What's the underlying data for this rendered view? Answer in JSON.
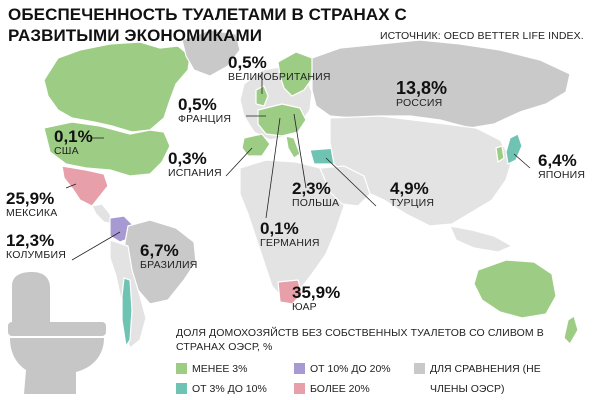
{
  "title": "ОБЕСПЕЧЕННОСТЬ ТУАЛЕТАМИ В СТРАНАХ С РАЗВИТЫМИ ЭКОНОМИКАМИ",
  "source": "ИСТОЧНИК: OECD BETTER LIFE INDEX.",
  "colors": {
    "less_3": "#9dcd85",
    "from3_to10": "#6fc3b3",
    "from10_to20": "#a79ad2",
    "more_20": "#e7a0aa",
    "non_oecd": "#c9c9c9",
    "land_light": "#e3e3e3",
    "border": "#ffffff",
    "toilet": "#c6c6c6"
  },
  "countries": {
    "uk": {
      "value": "0,5%",
      "name": "ВЕЛИКОБРИТАНИЯ"
    },
    "russia": {
      "value": "13,8%",
      "name": "РОССИЯ"
    },
    "france": {
      "value": "0,5%",
      "name": "ФРАНЦИЯ"
    },
    "usa": {
      "value": "0,1%",
      "name": "США"
    },
    "japan": {
      "value": "6,4%",
      "name": "ЯПОНИЯ"
    },
    "spain": {
      "value": "0,3%",
      "name": "ИСПАНИЯ"
    },
    "mexico": {
      "value": "25,9%",
      "name": "МЕКСИКА"
    },
    "poland": {
      "value": "2,3%",
      "name": "ПОЛЬША"
    },
    "turkey": {
      "value": "4,9%",
      "name": "ТУРЦИЯ"
    },
    "germany": {
      "value": "0,1%",
      "name": "ГЕРМАНИЯ"
    },
    "colombia": {
      "value": "12,3%",
      "name": "КОЛУМБИЯ"
    },
    "brazil": {
      "value": "6,7%",
      "name": "БРАЗИЛИЯ"
    },
    "sa": {
      "value": "35,9%",
      "name": "ЮАР"
    }
  },
  "legend": {
    "title": "ДОЛЯ ДОМОХОЗЯЙСТВ БЕЗ СОБСТВЕННЫХ ТУАЛЕТОВ СО СЛИВОМ В СТРАНАХ ОЭСР, %",
    "items": [
      {
        "label": "МЕНЕЕ 3%"
      },
      {
        "label": "ОТ 3% ДО 10%"
      },
      {
        "label": "ОТ 10% ДО 20%"
      },
      {
        "label": "БОЛЕЕ 20%"
      },
      {
        "label": "ДЛЯ СРАВНЕНИЯ (НЕ ЧЛЕНЫ ОЭСР)"
      }
    ]
  },
  "icons": {
    "toilet": "toilet-icon"
  }
}
